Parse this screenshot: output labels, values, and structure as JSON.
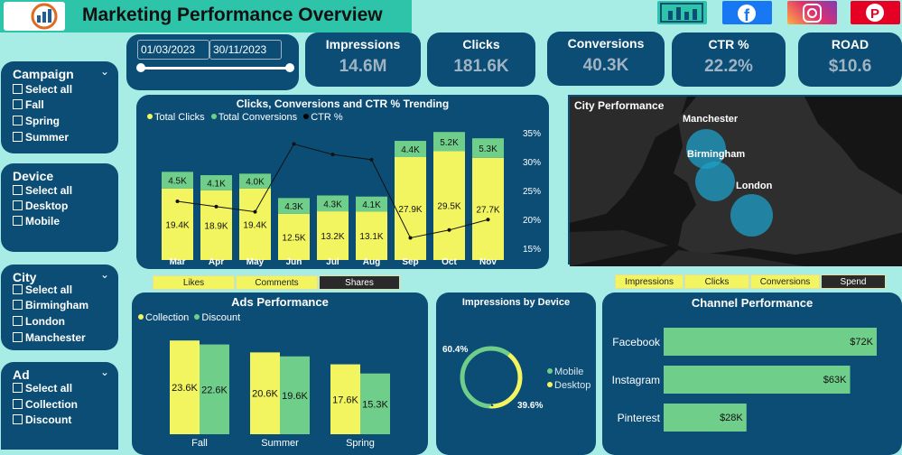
{
  "header": {
    "title": "Marketing Performance Overview"
  },
  "colors": {
    "accent": "#f3f560",
    "green": "#6fcf8a",
    "panel": "#0b4d75",
    "bg": "#a8ece6"
  },
  "date_range": {
    "start": "01/03/2023",
    "end": "30/11/2023"
  },
  "kpis": [
    {
      "label": "Impressions",
      "value": "14.6M"
    },
    {
      "label": "Clicks",
      "value": "181.6K"
    },
    {
      "label": "Conversions",
      "value": "40.3K"
    },
    {
      "label": "CTR %",
      "value": "22.2%"
    },
    {
      "label": "ROAD",
      "value": "$10.6"
    }
  ],
  "filters": {
    "campaign": {
      "title": "Campaign",
      "options": [
        "Select all",
        "Fall",
        "Spring",
        "Summer"
      ]
    },
    "device": {
      "title": "Device",
      "options": [
        "Select all",
        "Desktop",
        "Mobile"
      ]
    },
    "city": {
      "title": "City",
      "options": [
        "Select all",
        "Birmingham",
        "London",
        "Manchester"
      ]
    },
    "ad": {
      "title": "Ad",
      "options": [
        "Select all",
        "Collection",
        "Discount"
      ]
    }
  },
  "trend": {
    "title": "Clicks, Conversions and CTR % Trending",
    "legend": [
      "Total Clicks",
      "Total Conversions",
      "CTR %"
    ]
  },
  "map": {
    "title": "City Performance",
    "cities": [
      "Manchester",
      "Birmingham",
      "London"
    ]
  },
  "buttons": {
    "engagement": [
      "Likes",
      "Comments",
      "Shares"
    ],
    "metrics": [
      "Impressions",
      "Clicks",
      "Conversions",
      "Spend"
    ]
  },
  "ads": {
    "title": "Ads Performance",
    "legend": [
      "Collection",
      "Discount"
    ]
  },
  "device": {
    "title": "Impressions by Device",
    "legend": [
      "Mobile",
      "Desktop"
    ]
  },
  "channel": {
    "title": "Channel Performance"
  },
  "chart_data": [
    {
      "type": "bar",
      "title": "Clicks, Conversions and CTR % Trending",
      "categories": [
        "Mar",
        "Apr",
        "May",
        "Jun",
        "Jul",
        "Aug",
        "Sep",
        "Oct",
        "Nov"
      ],
      "series": [
        {
          "name": "Total Clicks",
          "values": [
            19.4,
            18.9,
            19.4,
            12.5,
            13.2,
            13.1,
            27.9,
            29.5,
            27.7
          ],
          "labels": [
            "19.4K",
            "18.9K",
            "19.4K",
            "12.5K",
            "13.2K",
            "13.1K",
            "27.9K",
            "29.5K",
            "27.7K"
          ]
        },
        {
          "name": "Total Conversions",
          "values": [
            4.5,
            4.1,
            4.0,
            4.3,
            4.3,
            4.1,
            4.4,
            5.2,
            5.3
          ],
          "labels": [
            "4.5K",
            "4.1K",
            "4.0K",
            "4.3K",
            "4.3K",
            "4.1K",
            "4.4K",
            "5.2K",
            "5.3K"
          ]
        },
        {
          "name": "CTR %",
          "values": [
            23,
            22,
            21,
            34,
            32,
            31,
            16,
            17.5,
            19.5
          ]
        }
      ],
      "ylim": [
        0,
        35
      ],
      "y2_ticks": [
        "35%",
        "30%",
        "25%",
        "20%",
        "15%"
      ],
      "y2lim": [
        14,
        36
      ]
    },
    {
      "type": "bar",
      "title": "Ads Performance",
      "categories": [
        "Fall",
        "Summer",
        "Spring"
      ],
      "series": [
        {
          "name": "Collection",
          "values": [
            23.6,
            20.6,
            17.6
          ],
          "labels": [
            "23.6K",
            "20.6K",
            "17.6K"
          ]
        },
        {
          "name": "Discount",
          "values": [
            22.6,
            19.6,
            15.3
          ],
          "labels": [
            "22.6K",
            "19.6K",
            "15.3K"
          ]
        }
      ],
      "ylim": [
        0,
        25
      ]
    },
    {
      "type": "pie",
      "title": "Impressions by Device",
      "categories": [
        "Mobile",
        "Desktop"
      ],
      "values": [
        60.4,
        39.6
      ],
      "labels": [
        "60.4%",
        "39.6%"
      ]
    },
    {
      "type": "bar",
      "title": "Channel Performance",
      "categories": [
        "Facebook",
        "Instagram",
        "Pinterest"
      ],
      "values": [
        72,
        63,
        28
      ],
      "labels": [
        "$72K",
        "$63K",
        "$28K"
      ],
      "xlim": [
        0,
        72
      ]
    }
  ]
}
